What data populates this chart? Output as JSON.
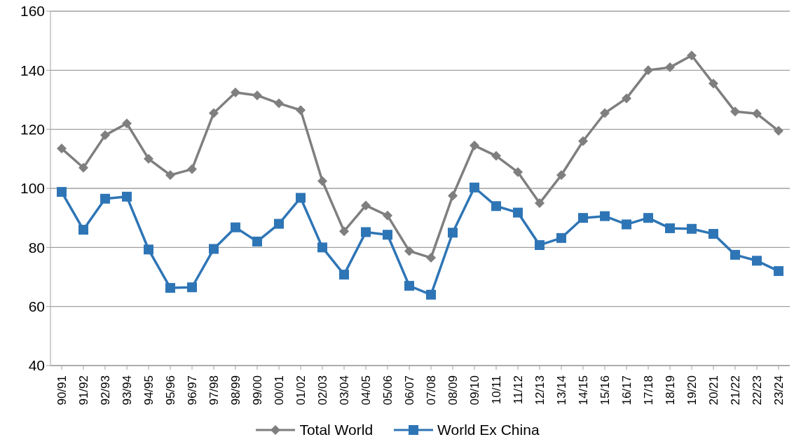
{
  "chart_data": {
    "type": "line",
    "categories": [
      "90/91",
      "91/92",
      "92/93",
      "93/94",
      "94/95",
      "95/96",
      "96/97",
      "97/98",
      "98/99",
      "99/00",
      "00/01",
      "01/02",
      "02/03",
      "03/04",
      "04/05",
      "05/06",
      "06/07",
      "07/08",
      "08/09",
      "09/10",
      "10/11",
      "11/12",
      "12/13",
      "13/14",
      "14/15",
      "15/16",
      "16/17",
      "17/18",
      "18/19",
      "19/20",
      "20/21",
      "21/22",
      "22/23",
      "23/24"
    ],
    "series": [
      {
        "name": "Total World",
        "color": "#7f7f7f",
        "marker": "diamond",
        "values": [
          113.5,
          107,
          118,
          122,
          110,
          104.5,
          106.5,
          125.5,
          132.5,
          131.5,
          128.8,
          126.5,
          102.5,
          85.5,
          94.2,
          90.8,
          78.8,
          76.5,
          97.5,
          114.5,
          111,
          105.5,
          95,
          104.5,
          116,
          125.5,
          130.5,
          140,
          141,
          145,
          135.5,
          126,
          125.3,
          119.5
        ]
      },
      {
        "name": "World Ex China",
        "color": "#2e75b6",
        "marker": "square",
        "values": [
          98.8,
          86,
          96.5,
          97.2,
          79.3,
          66.3,
          66.5,
          79.5,
          86.8,
          82,
          88,
          96.8,
          80,
          70.8,
          85.2,
          84.3,
          67,
          64,
          85,
          100.3,
          94,
          91.8,
          80.8,
          83.2,
          90,
          90.6,
          87.8,
          90,
          86.5,
          86.3,
          84.6,
          77.5,
          75.5,
          72
        ]
      }
    ],
    "ylim": [
      40,
      160
    ],
    "yticks": [
      40,
      60,
      80,
      100,
      120,
      140,
      160
    ],
    "grid": "y",
    "legend": "bottom",
    "line_style": "solid"
  }
}
